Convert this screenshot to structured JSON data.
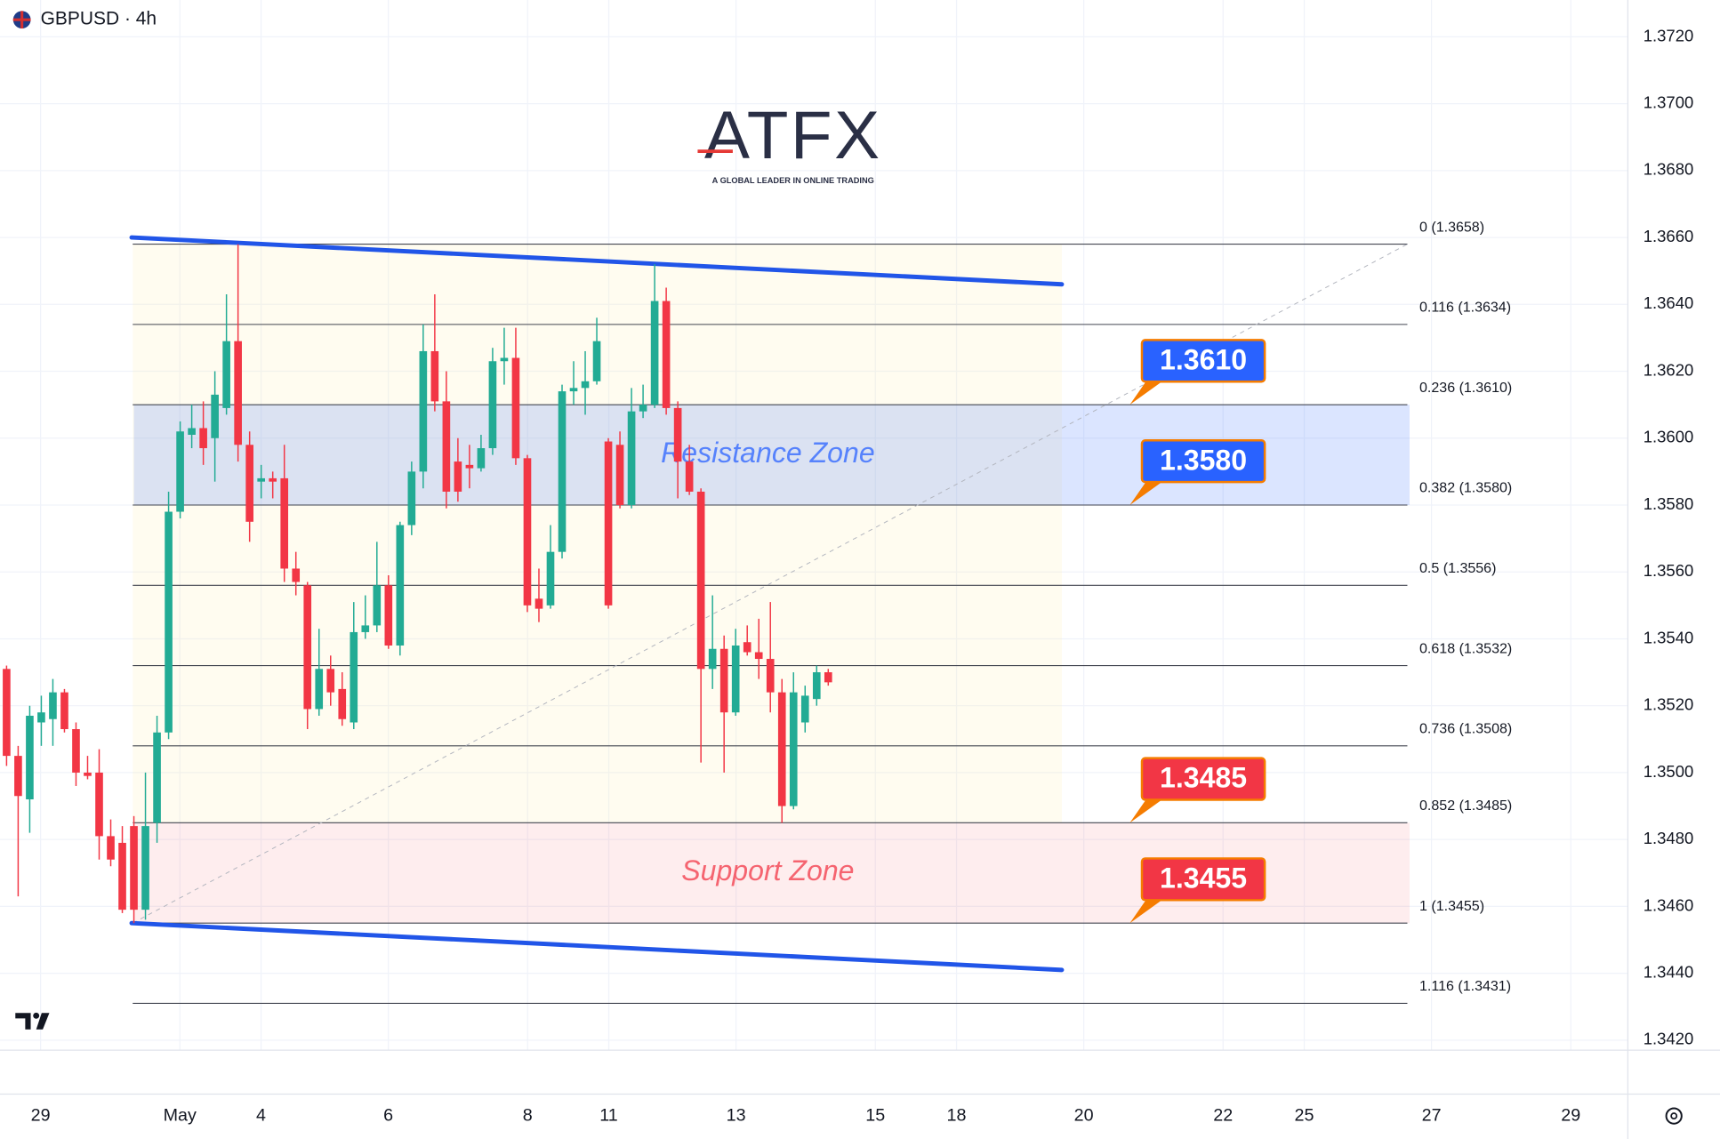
{
  "header": {
    "symbol_title": "GBPUSD · 4h"
  },
  "logo": {
    "name": "ATFX",
    "tagline": "A GLOBAL LEADER IN ONLINE TRADING"
  },
  "chart_data": {
    "type": "candlestick",
    "up_color": "#22ab94",
    "down_color": "#f23645",
    "open": [
      1.3531,
      1.3505,
      1.3492,
      1.3515,
      1.3516,
      1.3524,
      1.3513,
      1.35,
      1.35,
      1.3481,
      1.3479,
      1.3484,
      1.3459,
      1.3485,
      1.3512,
      1.3578,
      1.3601,
      1.3603,
      1.36,
      1.3609,
      1.3629,
      1.3598,
      1.3587,
      1.3588,
      1.3588,
      1.3561,
      1.3556,
      1.3519,
      1.3531,
      1.3525,
      1.3515,
      1.3542,
      1.3544,
      1.3556,
      1.3538,
      1.3574,
      1.359,
      1.3626,
      1.3611,
      1.3593,
      1.3592,
      1.3591,
      1.3597,
      1.3623,
      1.3624,
      1.3594,
      1.3552,
      1.355,
      1.3566,
      1.3614,
      1.3615,
      1.3617,
      1.3599,
      1.3598,
      1.358,
      1.3608,
      1.361,
      1.3641,
      1.3609,
      1.3593,
      1.3584,
      1.3531,
      1.3537,
      1.3518,
      1.3539,
      1.3536,
      1.3534,
      1.3524,
      1.349,
      1.3515,
      1.3522,
      1.353
    ],
    "high": [
      1.3532,
      1.3508,
      1.352,
      1.3523,
      1.3528,
      1.3525,
      1.3515,
      1.3505,
      1.3507,
      1.3486,
      1.3484,
      1.3487,
      1.35,
      1.3517,
      1.3584,
      1.3605,
      1.361,
      1.3611,
      1.362,
      1.3643,
      1.3658,
      1.3602,
      1.3592,
      1.359,
      1.3598,
      1.3566,
      1.3557,
      1.3543,
      1.3535,
      1.353,
      1.3551,
      1.3553,
      1.3569,
      1.3559,
      1.3575,
      1.3593,
      1.3634,
      1.3643,
      1.362,
      1.36,
      1.3598,
      1.3601,
      1.3627,
      1.3633,
      1.3633,
      1.3595,
      1.3561,
      1.3574,
      1.3616,
      1.3623,
      1.3626,
      1.3636,
      1.36,
      1.3602,
      1.3615,
      1.3616,
      1.3652,
      1.3645,
      1.3611,
      1.3598,
      1.3585,
      1.3553,
      1.3541,
      1.3543,
      1.3544,
      1.3546,
      1.3551,
      1.3528,
      1.353,
      1.3526,
      1.3532,
      1.3531
    ],
    "low": [
      1.3502,
      1.3463,
      1.3482,
      1.3508,
      1.3508,
      1.3512,
      1.3496,
      1.3498,
      1.3474,
      1.3472,
      1.3458,
      1.3455,
      1.3456,
      1.3479,
      1.351,
      1.3576,
      1.3597,
      1.3592,
      1.3587,
      1.3607,
      1.3593,
      1.3569,
      1.3582,
      1.3582,
      1.3557,
      1.3553,
      1.3513,
      1.3517,
      1.352,
      1.3514,
      1.3513,
      1.354,
      1.3542,
      1.3537,
      1.3535,
      1.3571,
      1.3585,
      1.3608,
      1.3579,
      1.3581,
      1.3585,
      1.359,
      1.3595,
      1.3616,
      1.3592,
      1.3548,
      1.3545,
      1.3549,
      1.3564,
      1.361,
      1.3607,
      1.3616,
      1.3549,
      1.3579,
      1.3579,
      1.3606,
      1.3609,
      1.3607,
      1.3582,
      1.3583,
      1.3503,
      1.3525,
      1.35,
      1.3517,
      1.3535,
      1.3528,
      1.3518,
      1.3485,
      1.3489,
      1.3512,
      1.352,
      1.3526
    ],
    "close": [
      1.3505,
      1.3493,
      1.3517,
      1.3518,
      1.3524,
      1.3513,
      1.35,
      1.3499,
      1.3481,
      1.3474,
      1.3459,
      1.3459,
      1.3484,
      1.3512,
      1.3578,
      1.3602,
      1.3603,
      1.3597,
      1.3613,
      1.3629,
      1.3598,
      1.3575,
      1.3588,
      1.3587,
      1.3561,
      1.3557,
      1.3519,
      1.3531,
      1.3524,
      1.3516,
      1.3542,
      1.3544,
      1.3556,
      1.3538,
      1.3574,
      1.359,
      1.3626,
      1.3611,
      1.3584,
      1.3584,
      1.3591,
      1.3597,
      1.3623,
      1.3624,
      1.3594,
      1.355,
      1.3549,
      1.3566,
      1.3614,
      1.3615,
      1.3617,
      1.3629,
      1.355,
      1.358,
      1.3608,
      1.361,
      1.3641,
      1.3609,
      1.3593,
      1.3584,
      1.3531,
      1.3537,
      1.3518,
      1.3538,
      1.3536,
      1.3534,
      1.3524,
      1.349,
      1.3524,
      1.3523,
      1.353,
      1.3527
    ],
    "ylim": [
      1.3417,
      1.3731
    ],
    "yticks": [
      {
        "value": 1.342,
        "label": "1.3420"
      },
      {
        "value": 1.344,
        "label": "1.3440"
      },
      {
        "value": 1.346,
        "label": "1.3460"
      },
      {
        "value": 1.348,
        "label": "1.3480"
      },
      {
        "value": 1.35,
        "label": "1.3500"
      },
      {
        "value": 1.352,
        "label": "1.3520"
      },
      {
        "value": 1.354,
        "label": "1.3540"
      },
      {
        "value": 1.356,
        "label": "1.3560"
      },
      {
        "value": 1.358,
        "label": "1.3580"
      },
      {
        "value": 1.36,
        "label": "1.3600"
      },
      {
        "value": 1.362,
        "label": "1.3620"
      },
      {
        "value": 1.364,
        "label": "1.3640"
      },
      {
        "value": 1.366,
        "label": "1.3660"
      },
      {
        "value": 1.368,
        "label": "1.3680"
      },
      {
        "value": 1.37,
        "label": "1.3700"
      },
      {
        "value": 1.372,
        "label": "1.3720"
      }
    ],
    "x_labels": [
      "29",
      "May",
      "4",
      "6",
      "8",
      "11",
      "13",
      "15",
      "18",
      "20",
      "22",
      "25",
      "27",
      "29"
    ],
    "grid": true,
    "fib_levels": [
      {
        "value": 1.3658,
        "label": "0 (1.3658)"
      },
      {
        "value": 1.3634,
        "label": "0.116 (1.3634)"
      },
      {
        "value": 1.361,
        "label": "0.236 (1.3610)"
      },
      {
        "value": 1.358,
        "label": "0.382 (1.3580)"
      },
      {
        "value": 1.3556,
        "label": "0.5 (1.3556)"
      },
      {
        "value": 1.3532,
        "label": "0.618 (1.3532)"
      },
      {
        "value": 1.3508,
        "label": "0.736 (1.3508)"
      },
      {
        "value": 1.3485,
        "label": "0.852 (1.3485)"
      },
      {
        "value": 1.3455,
        "label": "1 (1.3455)"
      },
      {
        "value": 1.3431,
        "label": "1.116 (1.3431)"
      }
    ],
    "zones": [
      {
        "name": "Resistance Zone",
        "range": [
          1.358,
          1.361
        ],
        "color": "#2962ff"
      },
      {
        "name": "Support Zone",
        "range": [
          1.3455,
          1.3485
        ],
        "color": "#f23645"
      }
    ],
    "price_tags": [
      {
        "value": 1.361,
        "label": "1.3610",
        "color": "#2962ff"
      },
      {
        "value": 1.358,
        "label": "1.3580",
        "color": "#2962ff"
      },
      {
        "value": 1.3485,
        "label": "1.3485",
        "color": "#f23645"
      },
      {
        "value": 1.3455,
        "label": "1.3455",
        "color": "#f23645"
      }
    ],
    "trendlines": [
      {
        "values": [
          1.366,
          1.3646
        ],
        "color": "#2155e8"
      },
      {
        "values": [
          1.3455,
          1.3441
        ],
        "color": "#2155e8"
      }
    ]
  }
}
